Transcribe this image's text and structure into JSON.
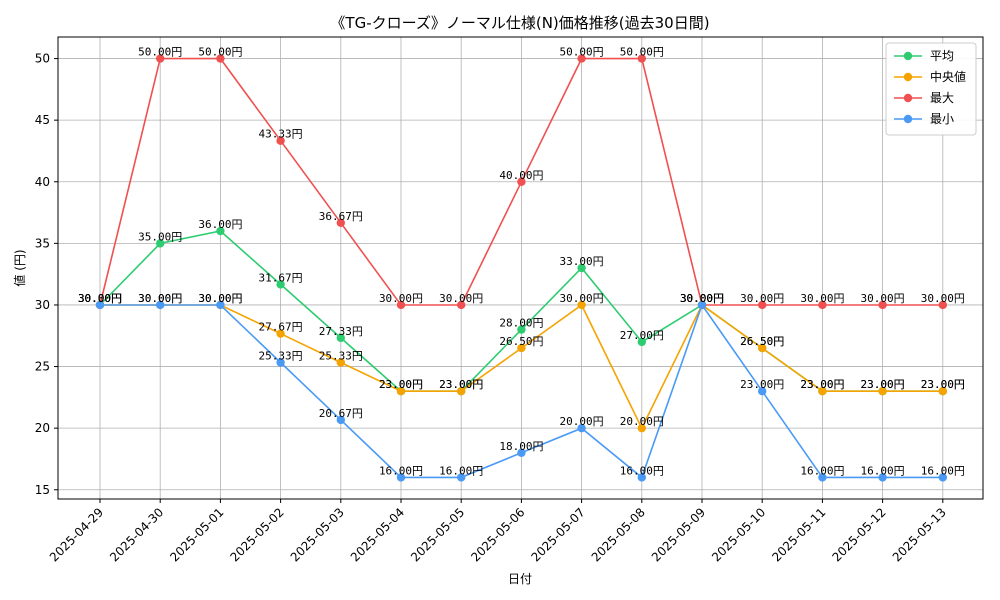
{
  "chart_data": {
    "type": "line",
    "title": "《TG-クローズ》ノーマル仕様(N)価格推移(過去30日間)",
    "xlabel": "日付",
    "ylabel": "値 (円)",
    "x": [
      "2025-04-29",
      "2025-04-30",
      "2025-05-01",
      "2025-05-02",
      "2025-05-03",
      "2025-05-04",
      "2025-05-05",
      "2025-05-06",
      "2025-05-07",
      "2025-05-08",
      "2025-05-09",
      "2025-05-10",
      "2025-05-11",
      "2025-05-12",
      "2025-05-13"
    ],
    "yticks": [
      15,
      20,
      25,
      30,
      35,
      40,
      45,
      50
    ],
    "ylim": [
      14.25,
      51.75
    ],
    "grid": true,
    "legend_position": "top-right",
    "label_suffix": "円",
    "series": [
      {
        "name": "平均",
        "color": "#2ecc71",
        "values": [
          30,
          35,
          36,
          31.67,
          27.33,
          23,
          23,
          28,
          33,
          27,
          30,
          26.5,
          23,
          23,
          23
        ]
      },
      {
        "name": " 中央値",
        "color": "#f5a300",
        "values": [
          30,
          30,
          30,
          27.67,
          25.33,
          23,
          23,
          26.5,
          30,
          20,
          30,
          26.5,
          23,
          23,
          23
        ]
      },
      {
        "name": "最大",
        "color": "#f05050",
        "values": [
          30,
          50,
          50,
          43.33,
          36.67,
          30,
          30,
          40,
          50,
          50,
          30,
          30,
          30,
          30,
          30
        ]
      },
      {
        "name": "最小",
        "color": "#4a9af5",
        "values": [
          30,
          30,
          30,
          25.33,
          20.67,
          16,
          16,
          18,
          20,
          16,
          30,
          23,
          16,
          16,
          16
        ]
      }
    ]
  }
}
